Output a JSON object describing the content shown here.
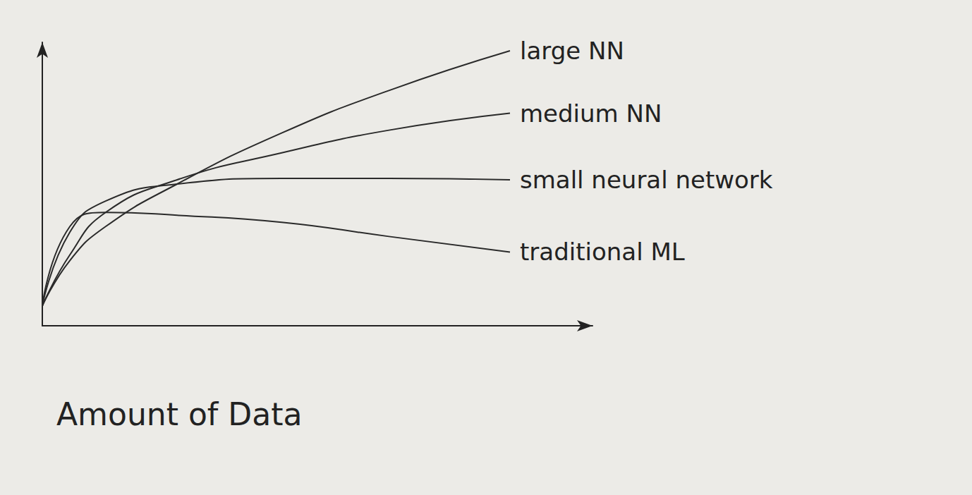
{
  "chart_data": {
    "type": "line",
    "x_label": "Amount of Data",
    "x": [
      0,
      5,
      11.5,
      24.5,
      43.5,
      63,
      85
    ],
    "series": [
      {
        "name": "large NN",
        "color": "#2a2a2a",
        "values": [
          7,
          23,
          35,
          50,
          68,
          83,
          97
        ]
      },
      {
        "name": "medium NN",
        "color": "#2a2a2a",
        "values": [
          7,
          25,
          40,
          51.5,
          61,
          69,
          75
        ]
      },
      {
        "name": "small neural network",
        "color": "#2a2a2a",
        "values": [
          7,
          33,
          44,
          50,
          52,
          52,
          51.5
        ]
      },
      {
        "name": "traditional ML",
        "color": "#2a2a2a",
        "values": [
          7,
          35,
          40,
          39,
          36.5,
          31.5,
          26
        ]
      }
    ],
    "xlim": [
      0,
      100
    ],
    "ylim": [
      0,
      100
    ],
    "grid": false,
    "tick_labels": false
  }
}
